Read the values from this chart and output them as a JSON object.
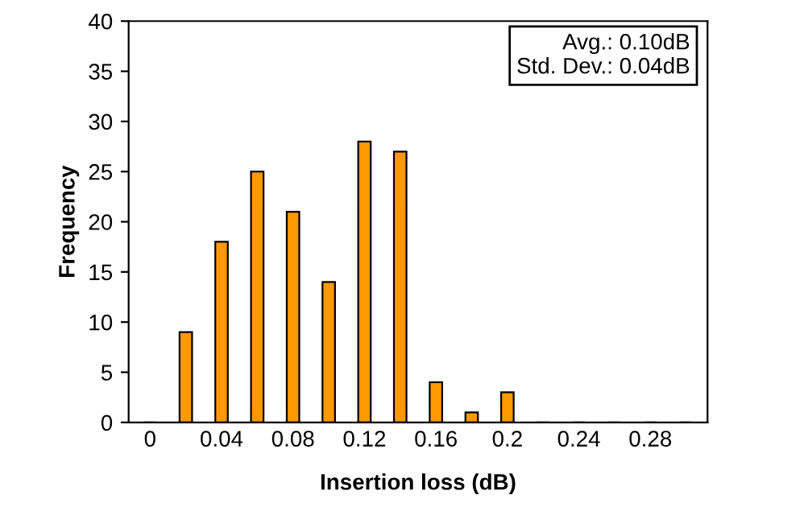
{
  "chart_data": {
    "type": "bar",
    "xlabel": "Insertion loss (dB)",
    "ylabel": "Frequency",
    "categories": [
      "0",
      null,
      "0.04",
      null,
      "0.08",
      null,
      "0.12",
      null,
      "0.16",
      null,
      "0.2",
      null,
      "0.24",
      null,
      "0.28",
      null
    ],
    "values": [
      0,
      9,
      18,
      25,
      21,
      14,
      28,
      27,
      4,
      1,
      3,
      0,
      0,
      0,
      0,
      0
    ],
    "color": "#ff9900",
    "ylim": [
      0,
      40
    ],
    "yticks": [
      0,
      5,
      10,
      15,
      20,
      25,
      30,
      35,
      40
    ],
    "grid": false,
    "legend": false,
    "annotations": [
      "Avg.: 0.10dB\nStd. Dev.: 0.04dB"
    ]
  }
}
